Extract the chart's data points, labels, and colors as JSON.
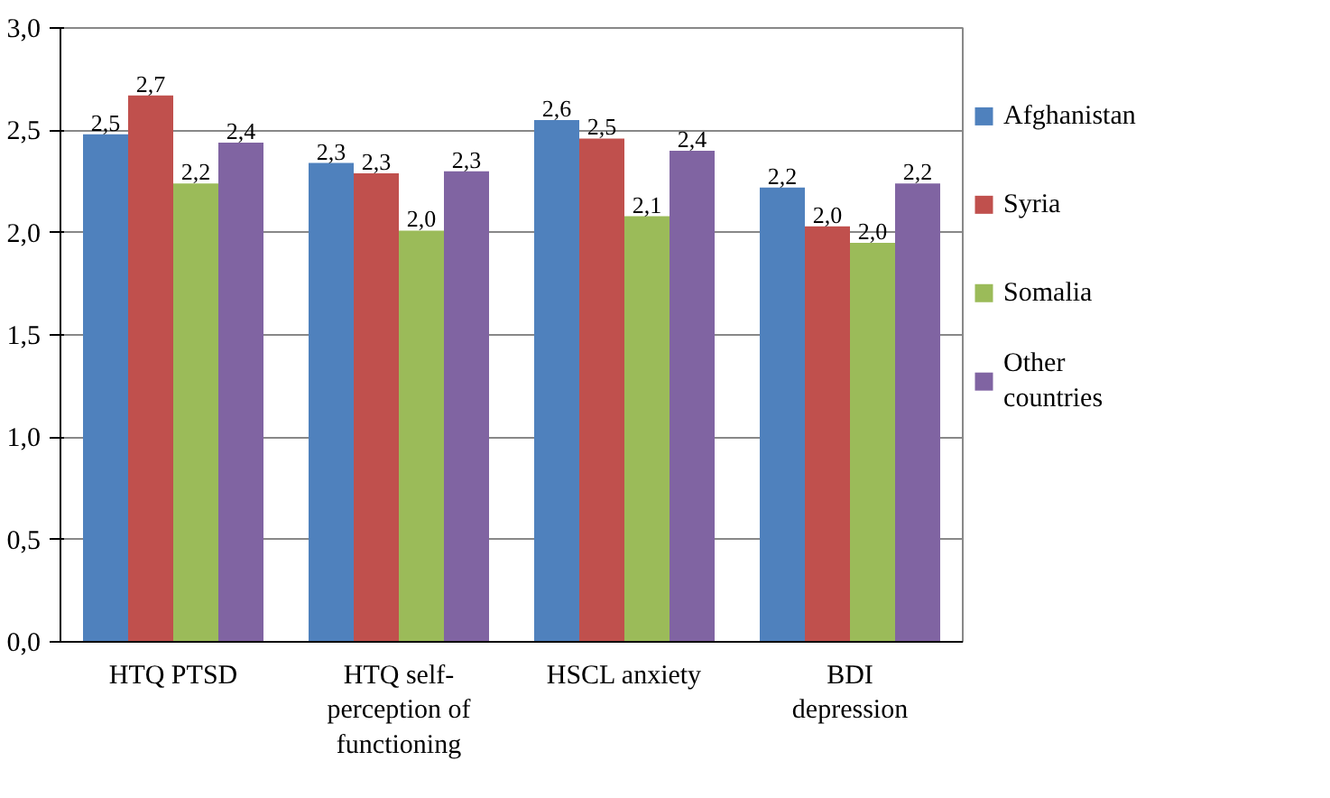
{
  "chart_data": {
    "type": "bar",
    "categories": [
      "HTQ PTSD",
      "HTQ self-perception of functioning",
      "HSCL anxiety",
      "BDI depression"
    ],
    "series": [
      {
        "name": "Afghanistan",
        "color": "#4f81bd",
        "values": [
          2.48,
          2.34,
          2.55,
          2.22
        ],
        "value_labels": [
          "2,5",
          "2,3",
          "2,6",
          "2,2"
        ]
      },
      {
        "name": "Syria",
        "color": "#c0504d",
        "values": [
          2.67,
          2.29,
          2.46,
          2.03
        ],
        "value_labels": [
          "2,7",
          "2,3",
          "2,5",
          "2,0"
        ]
      },
      {
        "name": "Somalia",
        "color": "#9bbb59",
        "values": [
          2.24,
          2.01,
          2.08,
          1.95
        ],
        "value_labels": [
          "2,2",
          "2,0",
          "2,1",
          "2,0"
        ]
      },
      {
        "name": "Other countries",
        "color": "#8064a2",
        "values": [
          2.44,
          2.3,
          2.4,
          2.24
        ],
        "value_labels": [
          "2,4",
          "2,3",
          "2,4",
          "2,2"
        ]
      }
    ],
    "ylim": [
      0,
      3
    ],
    "yticks": [
      {
        "value": 0,
        "label": "0,0"
      },
      {
        "value": 0.5,
        "label": "0,5"
      },
      {
        "value": 1,
        "label": "1,0"
      },
      {
        "value": 1.5,
        "label": "1,5"
      },
      {
        "value": 2,
        "label": "2,0"
      },
      {
        "value": 2.5,
        "label": "2,5"
      },
      {
        "value": 3,
        "label": "3,0"
      }
    ],
    "grid": "y",
    "legend": "right"
  }
}
